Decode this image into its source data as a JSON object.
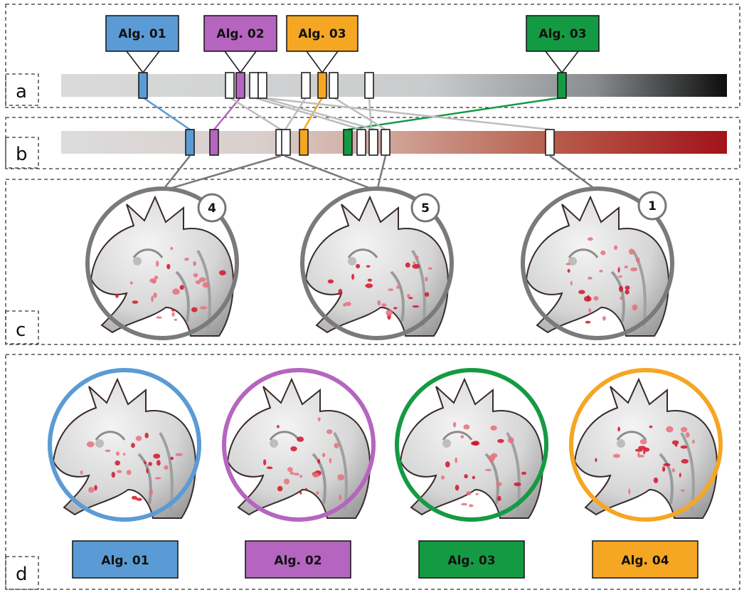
{
  "panels": {
    "a": "a",
    "b": "b",
    "c": "c",
    "d": "d"
  },
  "colors": {
    "alg01": "#5b9bd5",
    "alg02": "#b565bf",
    "alg03_top": "#f5a623",
    "alg03": "#159a44",
    "alg04": "#f5a623",
    "connector_gray": "#bdbdbd",
    "connector_dark": "#777777",
    "ring_gray": "#7a7a7a",
    "bar_a_start": "#d9d9d9",
    "bar_a_end": "#111111",
    "bar_b_start": "#dddddd",
    "bar_b_end": "#a51218"
  },
  "top_labels": [
    {
      "text": "Alg. 01",
      "color": "#5b9bd5"
    },
    {
      "text": "Alg. 02",
      "color": "#b565bf"
    },
    {
      "text": "Alg. 03",
      "color": "#f5a623"
    },
    {
      "text": "Alg. 03",
      "color": "#159a44"
    }
  ],
  "bottom_labels": [
    {
      "text": "Alg. 01",
      "color": "#5b9bd5"
    },
    {
      "text": "Alg. 02",
      "color": "#b565bf"
    },
    {
      "text": "Alg. 03",
      "color": "#159a44"
    },
    {
      "text": "Alg. 04",
      "color": "#f5a623"
    }
  ],
  "cluster_badges": [
    "4",
    "5",
    "1"
  ]
}
